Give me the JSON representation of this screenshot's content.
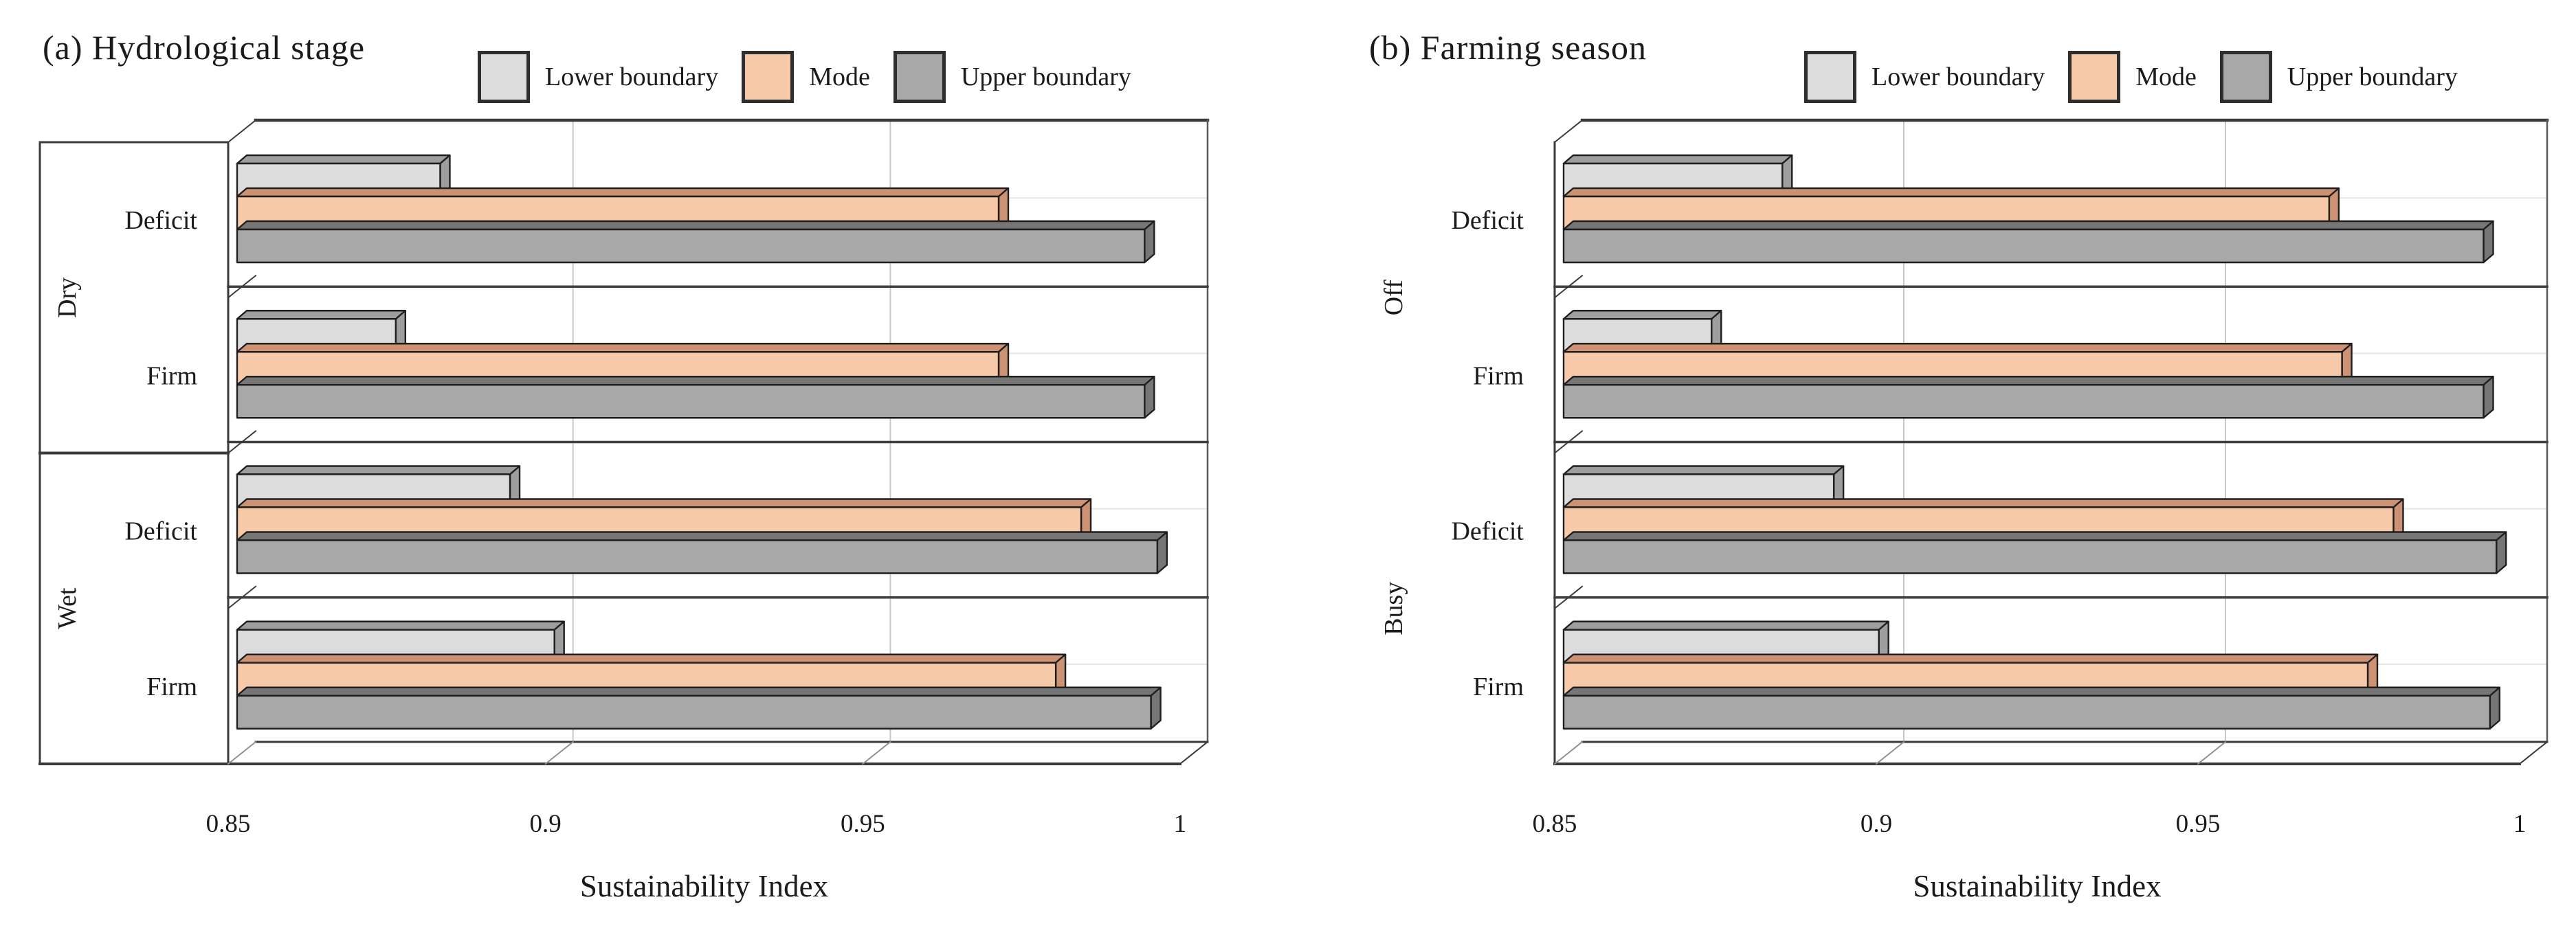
{
  "panels": [
    {
      "title": "(a) Hydrological stage",
      "legend": [
        "Lower boundary",
        "Mode",
        "Upper boundary"
      ]
    },
    {
      "title": "(b) Farming season",
      "legend": [
        "Lower boundary",
        "Mode",
        "Upper boundary"
      ]
    }
  ],
  "colors": {
    "lower": {
      "face": "#dcdcdc",
      "side": "#9e9e9e"
    },
    "mode": {
      "face": "#f6c9a8",
      "side": "#cc9273"
    },
    "upper": {
      "face": "#a8a8a8",
      "side": "#767676"
    },
    "axis": "#3a3a3a",
    "gridline": "#c9c9c9",
    "text": "#1b1b1b"
  },
  "chart_data": [
    {
      "type": "bar",
      "orientation": "horizontal-3d",
      "title": "(a) Hydrological stage",
      "xlabel": "Sustainability Index",
      "xlim": [
        0.85,
        1.0
      ],
      "xticks": [
        "0.85",
        "0.9",
        "0.95",
        "1"
      ],
      "grid": "on",
      "legend_position": "top",
      "legend": [
        "Lower boundary",
        "Mode",
        "Upper boundary"
      ],
      "rows": [
        {
          "group": "Dry",
          "label": "Deficit"
        },
        {
          "group": "Dry",
          "label": "Firm"
        },
        {
          "group": "Wet",
          "label": "Deficit"
        },
        {
          "group": "Wet",
          "label": "Firm"
        }
      ],
      "series": [
        {
          "name": "Lower boundary",
          "values": [
            0.882,
            0.875,
            0.893,
            0.9
          ]
        },
        {
          "name": "Mode",
          "values": [
            0.97,
            0.97,
            0.983,
            0.979
          ]
        },
        {
          "name": "Upper boundary",
          "values": [
            0.993,
            0.993,
            0.995,
            0.994
          ]
        }
      ]
    },
    {
      "type": "bar",
      "orientation": "horizontal-3d",
      "title": "(b) Farming season",
      "xlabel": "Sustainability Index",
      "xlim": [
        0.85,
        1.0
      ],
      "xticks": [
        "0.85",
        "0.9",
        "0.95",
        "1"
      ],
      "grid": "on",
      "legend_position": "top",
      "legend": [
        "Lower boundary",
        "Mode",
        "Upper boundary"
      ],
      "rows": [
        {
          "group": "Off",
          "label": "Deficit"
        },
        {
          "group": "Off",
          "label": "Firm"
        },
        {
          "group": "Busy",
          "label": "Deficit"
        },
        {
          "group": "Busy",
          "label": "Firm"
        }
      ],
      "series": [
        {
          "name": "Lower boundary",
          "values": [
            0.884,
            0.873,
            0.892,
            0.899
          ]
        },
        {
          "name": "Mode",
          "values": [
            0.969,
            0.971,
            0.979,
            0.975
          ]
        },
        {
          "name": "Upper boundary",
          "values": [
            0.993,
            0.993,
            0.995,
            0.994
          ]
        }
      ]
    }
  ]
}
